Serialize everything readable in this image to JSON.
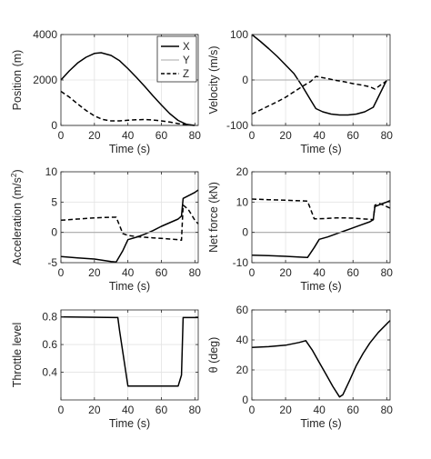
{
  "chart_data": [
    {
      "type": "line",
      "xlabel": "Time (s)",
      "ylabel": "Position (m)",
      "xlim": [
        0,
        82
      ],
      "ylim": [
        0,
        4000
      ],
      "xticks": [
        0,
        20,
        40,
        60,
        80
      ],
      "yticks": [
        0,
        2000,
        4000
      ],
      "grid": true,
      "legend": "top-right",
      "series": [
        {
          "name": "X",
          "style": "solid",
          "color": "#000000",
          "x": [
            0,
            5,
            10,
            15,
            20,
            24,
            30,
            35,
            40,
            45,
            50,
            55,
            60,
            65,
            70,
            75,
            80
          ],
          "y": [
            2000,
            2400,
            2750,
            3000,
            3170,
            3200,
            3080,
            2850,
            2500,
            2120,
            1720,
            1300,
            900,
            520,
            220,
            50,
            0
          ]
        },
        {
          "name": "Y",
          "style": "solid",
          "color": "#aaaaaa",
          "x": [
            0,
            82
          ],
          "y": [
            0,
            0
          ]
        },
        {
          "name": "Z",
          "style": "dashed",
          "color": "#000000",
          "x": [
            0,
            5,
            10,
            15,
            20,
            25,
            30,
            35,
            40,
            45,
            50,
            55,
            60,
            65,
            70,
            75,
            80
          ],
          "y": [
            1500,
            1250,
            950,
            660,
            420,
            260,
            200,
            200,
            230,
            250,
            260,
            240,
            200,
            150,
            80,
            30,
            0
          ]
        }
      ]
    },
    {
      "type": "line",
      "xlabel": "Time (s)",
      "ylabel": "Velocity (m/s)",
      "xlim": [
        0,
        82
      ],
      "ylim": [
        -100,
        100
      ],
      "xticks": [
        0,
        20,
        40,
        60,
        80
      ],
      "yticks": [
        -100,
        0,
        100
      ],
      "grid": true,
      "series": [
        {
          "style": "solid",
          "color": "#000000",
          "x": [
            0,
            5,
            10,
            15,
            20,
            25,
            30,
            35,
            38,
            42,
            47,
            52,
            57,
            62,
            67,
            72,
            76,
            80
          ],
          "y": [
            100,
            85,
            69,
            52,
            33,
            14,
            -14,
            -45,
            -63,
            -70,
            -75,
            -77,
            -77,
            -75,
            -70,
            -60,
            -30,
            0
          ]
        },
        {
          "style": "solid",
          "color": "#aaaaaa",
          "x": [
            0,
            82
          ],
          "y": [
            0,
            0
          ]
        },
        {
          "style": "dashed",
          "color": "#000000",
          "x": [
            0,
            5,
            10,
            15,
            20,
            25,
            30,
            35,
            38,
            45,
            50,
            55,
            60,
            65,
            70,
            73,
            76,
            80
          ],
          "y": [
            -75,
            -66,
            -57,
            -48,
            -38,
            -26,
            -14,
            -3,
            8,
            3,
            -1,
            -4,
            -8,
            -11,
            -15,
            -20,
            -12,
            -2
          ]
        }
      ]
    },
    {
      "type": "line",
      "xlabel": "Time (s)",
      "ylabel": "Acceleration (m/s",
      "ylabel_sup": "2",
      "ylabel_tail": ")",
      "xlim": [
        0,
        82
      ],
      "ylim": [
        -5,
        10
      ],
      "xticks": [
        0,
        20,
        40,
        60,
        80
      ],
      "yticks": [
        -5,
        0,
        5,
        10
      ],
      "grid": true,
      "series": [
        {
          "style": "solid",
          "color": "#000000",
          "x": [
            0,
            10,
            20,
            30,
            33,
            37,
            40,
            45,
            50,
            55,
            60,
            65,
            70,
            72,
            73,
            80,
            82
          ],
          "y": [
            -4.0,
            -4.2,
            -4.4,
            -4.8,
            -4.9,
            -3.0,
            -1.2,
            -0.8,
            -0.3,
            0.3,
            1.0,
            1.6,
            2.2,
            2.7,
            5.6,
            6.6,
            7.0
          ]
        },
        {
          "style": "solid",
          "color": "#aaaaaa",
          "x": [
            0,
            82
          ],
          "y": [
            0,
            0
          ]
        },
        {
          "style": "dashed",
          "color": "#000000",
          "x": [
            0,
            10,
            20,
            30,
            33,
            37,
            40,
            45,
            50,
            55,
            60,
            65,
            70,
            72,
            73,
            76,
            80,
            82
          ],
          "y": [
            2.0,
            2.2,
            2.4,
            2.5,
            2.5,
            -0.2,
            -0.5,
            -0.7,
            -0.8,
            -0.9,
            -1.0,
            -1.1,
            -1.2,
            -1.3,
            4.5,
            3.8,
            2.0,
            1.4
          ]
        }
      ]
    },
    {
      "type": "line",
      "xlabel": "Time (s)",
      "ylabel": "Net force (kN)",
      "xlim": [
        0,
        82
      ],
      "ylim": [
        -10,
        20
      ],
      "xticks": [
        0,
        20,
        40,
        60,
        80
      ],
      "yticks": [
        -10,
        0,
        10,
        20
      ],
      "grid": true,
      "series": [
        {
          "style": "solid",
          "color": "#000000",
          "x": [
            0,
            10,
            20,
            30,
            33,
            37,
            40,
            45,
            50,
            55,
            60,
            65,
            70,
            72,
            73,
            76,
            80,
            82
          ],
          "y": [
            -7.5,
            -7.7,
            -7.9,
            -8.2,
            -8.3,
            -5.0,
            -2.3,
            -1.5,
            -0.5,
            0.5,
            1.5,
            2.5,
            3.5,
            4.2,
            8.5,
            9.2,
            10.0,
            10.5
          ]
        },
        {
          "style": "solid",
          "color": "#aaaaaa",
          "x": [
            0,
            82
          ],
          "y": [
            0,
            0
          ]
        },
        {
          "style": "dashed",
          "color": "#000000",
          "x": [
            0,
            10,
            20,
            30,
            33,
            37,
            40,
            45,
            50,
            55,
            60,
            65,
            70,
            72,
            73,
            76,
            80,
            82
          ],
          "y": [
            11.0,
            10.8,
            10.6,
            10.4,
            10.3,
            4.5,
            4.5,
            4.6,
            4.8,
            4.8,
            4.7,
            4.5,
            4.3,
            4.2,
            9.0,
            9.5,
            8.5,
            8.0
          ]
        }
      ]
    },
    {
      "type": "line",
      "xlabel": "Time (s)",
      "ylabel": "Throttle level",
      "xlim": [
        0,
        82
      ],
      "ylim": [
        0.2,
        0.85
      ],
      "xticks": [
        0,
        20,
        40,
        60,
        80
      ],
      "yticks": [
        0.4,
        0.6,
        0.8
      ],
      "ytick_labels": [
        "0.4",
        "0.6",
        "0.8"
      ],
      "grid": true,
      "series": [
        {
          "style": "solid",
          "color": "#000000",
          "x": [
            0,
            34,
            35,
            40,
            70,
            72,
            73,
            82
          ],
          "y": [
            0.8,
            0.795,
            0.7,
            0.3,
            0.3,
            0.38,
            0.795,
            0.795
          ]
        }
      ]
    },
    {
      "type": "line",
      "xlabel": "Time (s)",
      "ylabel": "θ (deg)",
      "xlim": [
        0,
        82
      ],
      "ylim": [
        0,
        60
      ],
      "xticks": [
        0,
        20,
        40,
        60,
        80
      ],
      "yticks": [
        0,
        20,
        40,
        60
      ],
      "grid": true,
      "series": [
        {
          "style": "solid",
          "color": "#000000",
          "x": [
            0,
            10,
            20,
            28,
            32,
            36,
            40,
            44,
            48,
            52,
            54,
            58,
            62,
            66,
            70,
            75,
            82
          ],
          "y": [
            35,
            35.5,
            36.5,
            38.3,
            39.5,
            33,
            25,
            17,
            9,
            2,
            3.5,
            13,
            23,
            31,
            38,
            45,
            53
          ]
        }
      ]
    }
  ]
}
